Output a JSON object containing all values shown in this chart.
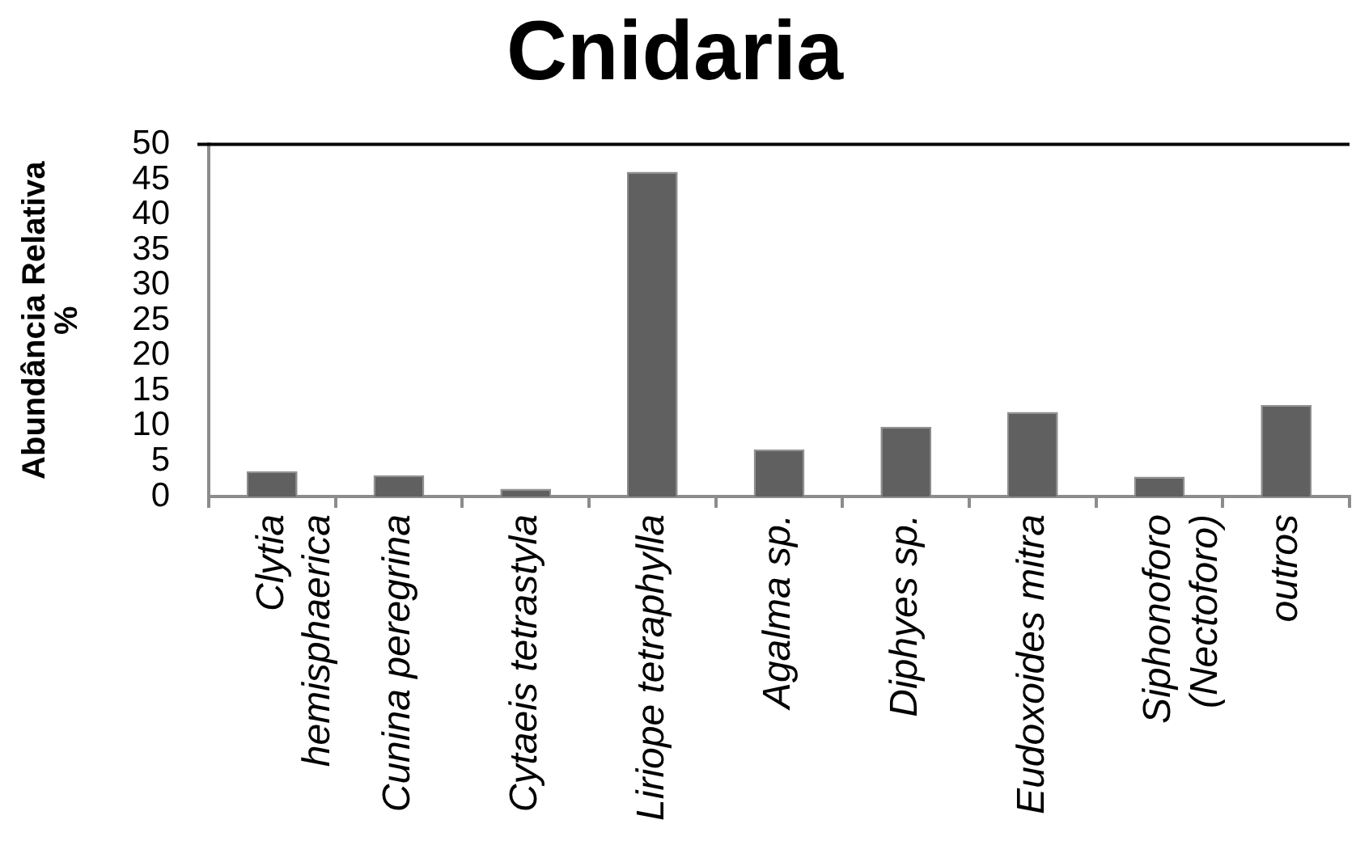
{
  "chart_data": {
    "type": "bar",
    "title": "Cnidaria",
    "ylabel": "Abundância Relativa %",
    "categories": [
      "Clytia hemisphaerica",
      "Cunina peregrina",
      "Cytaeis tetrastyla",
      "Liriope tetraphylla",
      "Agalma sp.",
      "Diphyes sp.",
      "Eudoxoides mitra",
      "Siphonoforo (Nectoforo)",
      "outros"
    ],
    "values": [
      3.6,
      3.0,
      1.1,
      46.1,
      6.7,
      9.9,
      12.0,
      2.8,
      13.0
    ],
    "color": "#606060",
    "ylim": [
      0,
      50
    ],
    "yticks": [
      0,
      5,
      10,
      15,
      20,
      25,
      30,
      35,
      40,
      45,
      50
    ],
    "grid": false,
    "legend": false
  }
}
